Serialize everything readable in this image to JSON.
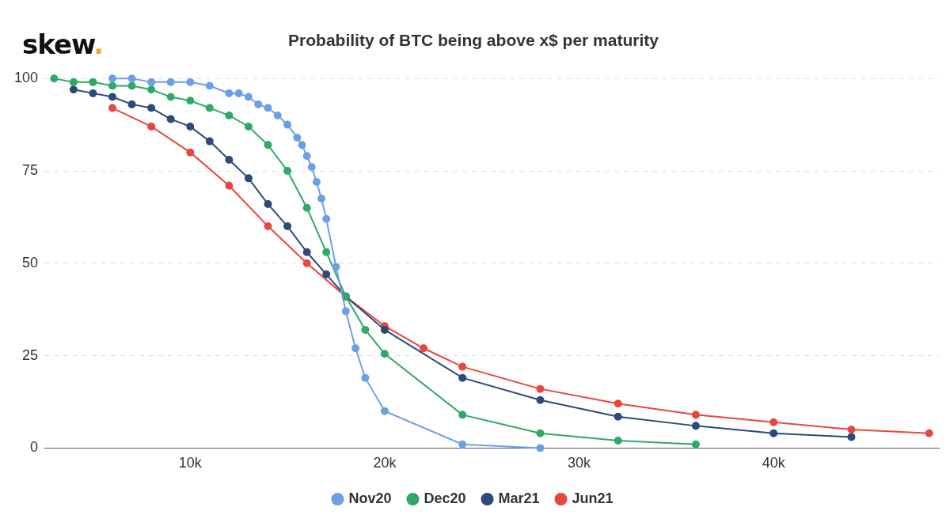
{
  "chart_data": {
    "type": "line",
    "logo": "skew.",
    "title": "Probability of BTC being above x$ per maturity",
    "xlim": [
      2500,
      48500
    ],
    "xticks": [
      {
        "value": 10000,
        "label": "10k"
      },
      {
        "value": 20000,
        "label": "20k"
      },
      {
        "value": 30000,
        "label": "30k"
      },
      {
        "value": 40000,
        "label": "40k"
      }
    ],
    "ylim": [
      0,
      100
    ],
    "yticks": [
      0,
      25,
      50,
      75,
      100
    ],
    "grid": true,
    "legend": "bottom",
    "series": [
      {
        "name": "Nov20",
        "color": "#6c9fe8",
        "marker": "circle",
        "x": [
          6000,
          7000,
          8000,
          9000,
          10000,
          11000,
          12000,
          12500,
          13000,
          13500,
          14000,
          14500,
          15000,
          15500,
          15750,
          16000,
          16250,
          16500,
          16750,
          17000,
          17500,
          18000,
          18500,
          19000,
          20000,
          24000,
          28000
        ],
        "values": [
          100,
          100,
          99,
          99,
          99,
          98,
          96,
          96,
          95,
          93,
          92,
          90,
          87.5,
          84,
          82,
          79,
          76,
          72,
          67.5,
          62,
          49,
          37,
          27,
          19,
          10,
          1,
          0
        ]
      },
      {
        "name": "Dec20",
        "color": "#2eaa66",
        "marker": "circle",
        "x": [
          3000,
          4000,
          5000,
          6000,
          7000,
          8000,
          9000,
          10000,
          11000,
          12000,
          13000,
          14000,
          15000,
          16000,
          17000,
          18000,
          19000,
          20000,
          24000,
          28000,
          32000,
          36000
        ],
        "values": [
          100,
          99,
          99,
          98,
          98,
          97,
          95,
          94,
          92,
          90,
          87,
          82,
          75,
          65,
          53,
          41,
          32,
          25.5,
          9,
          4,
          2,
          1
        ]
      },
      {
        "name": "Mar21",
        "color": "#2c4a7a",
        "marker": "circle",
        "x": [
          4000,
          5000,
          6000,
          7000,
          8000,
          9000,
          10000,
          11000,
          12000,
          13000,
          14000,
          15000,
          16000,
          17000,
          18000,
          20000,
          24000,
          28000,
          32000,
          36000,
          40000,
          44000
        ],
        "values": [
          97,
          96,
          95,
          93,
          92,
          89,
          87,
          83,
          78,
          73,
          66,
          60,
          53,
          47,
          41,
          32,
          19,
          13,
          8.5,
          6,
          4,
          3
        ]
      },
      {
        "name": "Jun21",
        "color": "#e8473e",
        "marker": "circle",
        "x": [
          6000,
          8000,
          10000,
          12000,
          14000,
          16000,
          18000,
          20000,
          22000,
          24000,
          28000,
          32000,
          36000,
          40000,
          44000,
          48000
        ],
        "values": [
          92,
          87,
          80,
          71,
          60,
          50,
          41,
          33,
          27,
          22,
          16,
          12,
          9,
          7,
          5,
          4
        ]
      }
    ]
  }
}
